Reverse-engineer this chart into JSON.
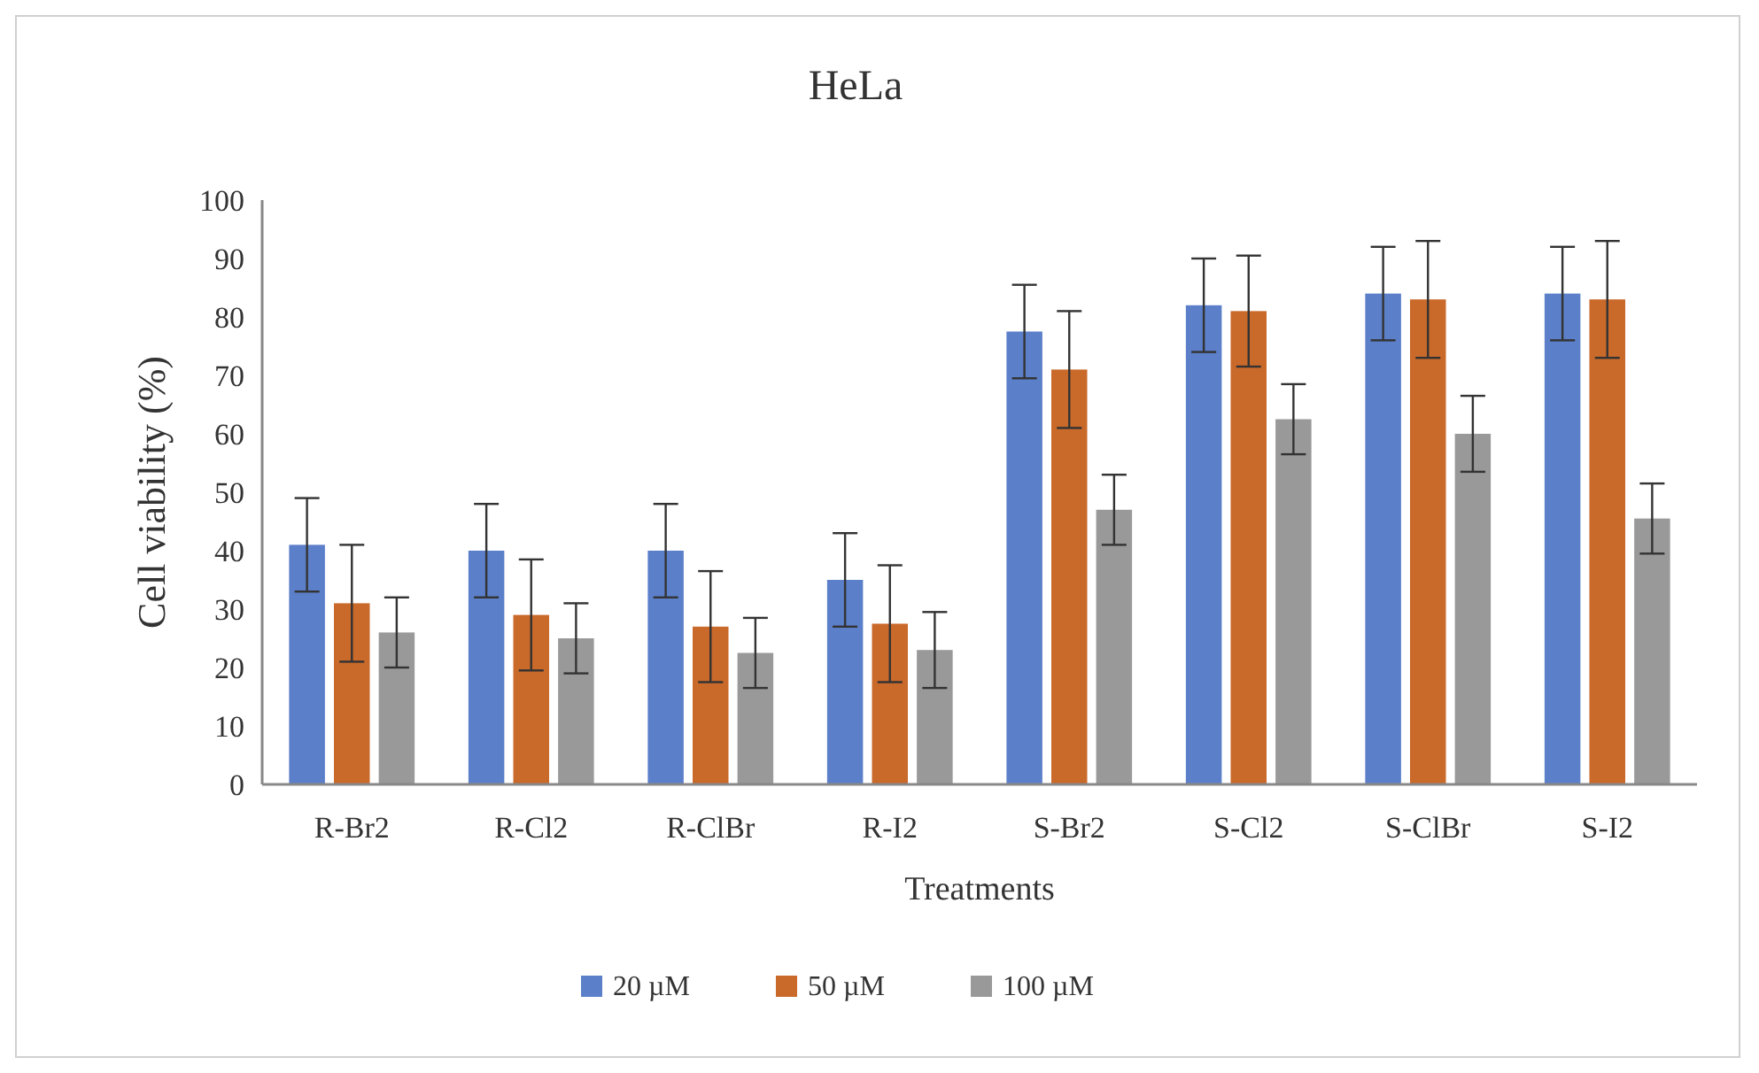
{
  "chart_data": {
    "type": "bar",
    "title": "HeLa",
    "xlabel": "Treatments",
    "ylabel": "Cell viability (%)",
    "categories": [
      "R-Br2",
      "R-Cl2",
      "R-ClBr",
      "R-I2",
      "S-Br2",
      "S-Cl2",
      "S-ClBr",
      "S-I2"
    ],
    "series": [
      {
        "name": "20 µM",
        "color": "#5b7fc9",
        "values": [
          41,
          40,
          40,
          35,
          77.5,
          82,
          84,
          84
        ],
        "errors": [
          8,
          8,
          8,
          8,
          8,
          8,
          8,
          8
        ]
      },
      {
        "name": "50 µM",
        "color": "#c9692a",
        "values": [
          31,
          29,
          27,
          27.5,
          71,
          81,
          83,
          83
        ],
        "errors": [
          10,
          9.5,
          9.5,
          10,
          10,
          9.5,
          10,
          10
        ]
      },
      {
        "name": "100 µM",
        "color": "#999999",
        "values": [
          26,
          25,
          22.5,
          23,
          47,
          62.5,
          60,
          45.5
        ],
        "errors": [
          6,
          6,
          6,
          6.5,
          6,
          6,
          6.5,
          6
        ]
      }
    ],
    "ylim": [
      0,
      100
    ],
    "yticks": [
      0,
      10,
      20,
      30,
      40,
      50,
      60,
      70,
      80,
      90,
      100
    ],
    "grid": false,
    "legend": "bottom"
  }
}
